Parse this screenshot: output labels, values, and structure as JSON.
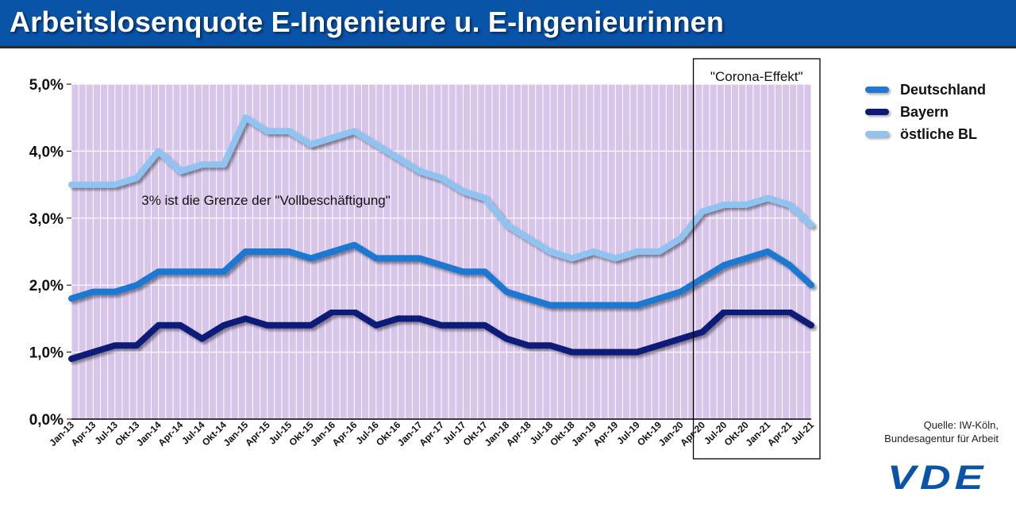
{
  "title": "Arbeitslosenquote E-Ingenieure u. E-Ingenieurinnen",
  "source": {
    "line1": "Quelle: IW-Köln,",
    "line2": "Bundesagentur für Arbeit"
  },
  "logo": "VDE",
  "colors": {
    "title_bar": "#0a54a8",
    "plot_bg": "#d7c6ea",
    "grid": "#ffffff"
  },
  "chart_data": {
    "type": "line",
    "title": "Arbeitslosenquote E-Ingenieure u. E-Ingenieurinnen",
    "xlabel": "",
    "ylabel": "",
    "ylim": [
      0,
      5
    ],
    "yticks": [
      "0,0%",
      "1,0%",
      "2,0%",
      "3,0%",
      "4,0%",
      "5,0%"
    ],
    "x_tick_labels": [
      "Jan-13",
      "Apr-13",
      "Jul-13",
      "Okt-13",
      "Jan-14",
      "Apr-14",
      "Jul-14",
      "Okt-14",
      "Jan-15",
      "Apr-15",
      "Jul-15",
      "Okt-15",
      "Jan-16",
      "Apr-16",
      "Jul-16",
      "Okt-16",
      "Jan-17",
      "Apr-17",
      "Jul-17",
      "Okt-17",
      "Jan-18",
      "Apr-18",
      "Jul-18",
      "Okt-18",
      "Jan-19",
      "Apr-19",
      "Jul-19",
      "Okt-19",
      "Jan-20",
      "Apr-20",
      "Jul-20",
      "Okt-20",
      "Jan-21",
      "Apr-21",
      "Jul-21"
    ],
    "grid": true,
    "legend_position": "right",
    "series": [
      {
        "name": "Deutschland",
        "color": "#1f78d1",
        "values": [
          1.8,
          1.9,
          1.9,
          2.0,
          2.2,
          2.2,
          2.2,
          2.2,
          2.5,
          2.5,
          2.5,
          2.4,
          2.5,
          2.6,
          2.4,
          2.4,
          2.4,
          2.3,
          2.2,
          2.2,
          1.9,
          1.8,
          1.7,
          1.7,
          1.7,
          1.7,
          1.7,
          1.8,
          1.9,
          2.1,
          2.3,
          2.4,
          2.5,
          2.3,
          2.0
        ]
      },
      {
        "name": "Bayern",
        "color": "#0b1a78",
        "values": [
          0.9,
          1.0,
          1.1,
          1.1,
          1.4,
          1.4,
          1.2,
          1.4,
          1.5,
          1.4,
          1.4,
          1.4,
          1.6,
          1.6,
          1.4,
          1.5,
          1.5,
          1.4,
          1.4,
          1.4,
          1.2,
          1.1,
          1.1,
          1.0,
          1.0,
          1.0,
          1.0,
          1.1,
          1.2,
          1.3,
          1.6,
          1.6,
          1.6,
          1.6,
          1.4
        ]
      },
      {
        "name": "östliche BL",
        "color": "#8fc3f2",
        "values": [
          3.5,
          3.5,
          3.5,
          3.6,
          4.0,
          3.7,
          3.8,
          3.8,
          4.5,
          4.3,
          4.3,
          4.1,
          4.2,
          4.3,
          4.1,
          3.9,
          3.7,
          3.6,
          3.4,
          3.3,
          2.9,
          2.7,
          2.5,
          2.4,
          2.5,
          2.4,
          2.5,
          2.5,
          2.7,
          3.1,
          3.2,
          3.2,
          3.3,
          3.2,
          2.9
        ]
      }
    ],
    "annotations": [
      {
        "text": "3% ist die Grenze der \"Vollbeschäftigung\"",
        "x": "Okt-13",
        "y": 3.2
      },
      {
        "text": "\"Corona-Effekt\"",
        "from": "Jan-20",
        "to": "Jul-21"
      }
    ]
  }
}
